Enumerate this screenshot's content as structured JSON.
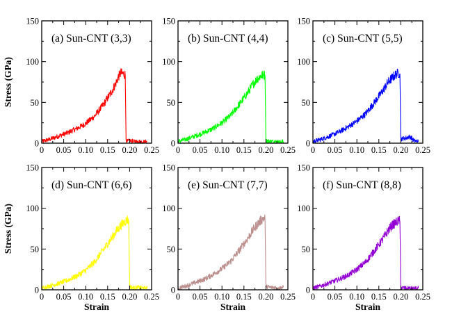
{
  "chart_data": [
    {
      "type": "line",
      "panel": "(a)",
      "title": "(a) Sun-CNT (3,3)",
      "color": "#ff0000",
      "xlabel": "",
      "ylabel": "Stress (GPa)",
      "xlim": [
        0,
        0.25
      ],
      "ylim": [
        0,
        150
      ],
      "xticks": [
        "0",
        "0.05",
        "0.10",
        "0.15",
        "0.20",
        "0.25"
      ],
      "yticks": [
        "0",
        "50",
        "100",
        "150"
      ],
      "series": [
        {
          "name": "Sun-CNT (3,3)",
          "x": [
            0,
            0.02,
            0.04,
            0.06,
            0.08,
            0.1,
            0.12,
            0.14,
            0.16,
            0.17,
            0.175,
            0.18,
            0.185,
            0.19,
            0.192,
            0.195,
            0.2,
            0.21,
            0.22,
            0.23,
            0.24
          ],
          "y": [
            2,
            5,
            9,
            13,
            18,
            24,
            33,
            47,
            64,
            75,
            82,
            86,
            85,
            84,
            4,
            2,
            3,
            2,
            2,
            1,
            2
          ]
        }
      ]
    },
    {
      "type": "line",
      "panel": "(b)",
      "title": "(b) Sun-CNT (4,4)",
      "color": "#00ff00",
      "xlabel": "",
      "ylabel": "",
      "xlim": [
        0,
        0.25
      ],
      "ylim": [
        0,
        150
      ],
      "xticks": [
        "0",
        "0.05",
        "0.10",
        "0.15",
        "0.20",
        "0.25"
      ],
      "yticks": [
        "0",
        "50",
        "100",
        "150"
      ],
      "series": [
        {
          "name": "Sun-CNT (4,4)",
          "x": [
            0,
            0.02,
            0.04,
            0.06,
            0.08,
            0.1,
            0.12,
            0.14,
            0.16,
            0.17,
            0.18,
            0.19,
            0.195,
            0.198,
            0.2,
            0.21,
            0.22,
            0.23,
            0.24
          ],
          "y": [
            2,
            5,
            9,
            13,
            18,
            25,
            34,
            48,
            63,
            72,
            79,
            83,
            84,
            83,
            3,
            2,
            2,
            1,
            2
          ]
        }
      ]
    },
    {
      "type": "line",
      "panel": "(c)",
      "title": "(c) Sun-CNT (5,5)",
      "color": "#0000ff",
      "xlabel": "",
      "ylabel": "",
      "xlim": [
        0,
        0.25
      ],
      "ylim": [
        0,
        150
      ],
      "xticks": [
        "0",
        "0.05",
        "0.10",
        "0.15",
        "0.20",
        "0.25"
      ],
      "yticks": [
        "0",
        "50",
        "100",
        "150"
      ],
      "series": [
        {
          "name": "Sun-CNT (5,5)",
          "x": [
            0,
            0.02,
            0.04,
            0.06,
            0.08,
            0.1,
            0.12,
            0.14,
            0.16,
            0.17,
            0.18,
            0.19,
            0.195,
            0.198,
            0.2,
            0.21,
            0.22,
            0.225,
            0.23,
            0.24
          ],
          "y": [
            2,
            5,
            9,
            14,
            20,
            27,
            36,
            50,
            65,
            74,
            80,
            85,
            86,
            85,
            5,
            6,
            8,
            6,
            3,
            2
          ]
        }
      ]
    },
    {
      "type": "line",
      "panel": "(d)",
      "title": "(d) Sun-CNT (6,6)",
      "color": "#ffff00",
      "xlabel": "Strain",
      "ylabel": "Stress (GPa)",
      "xlim": [
        0,
        0.25
      ],
      "ylim": [
        0,
        150
      ],
      "xticks": [
        "0",
        "0.05",
        "0.10",
        "0.15",
        "0.20",
        "0.25"
      ],
      "yticks": [
        "0",
        "50",
        "100",
        "150"
      ],
      "series": [
        {
          "name": "Sun-CNT (6,6)",
          "x": [
            0,
            0.02,
            0.04,
            0.06,
            0.08,
            0.1,
            0.12,
            0.14,
            0.16,
            0.17,
            0.18,
            0.19,
            0.195,
            0.198,
            0.2,
            0.21,
            0.22,
            0.23,
            0.24
          ],
          "y": [
            2,
            5,
            8,
            12,
            17,
            24,
            34,
            49,
            64,
            72,
            79,
            84,
            86,
            85,
            4,
            2,
            3,
            2,
            2
          ]
        }
      ]
    },
    {
      "type": "line",
      "panel": "(e)",
      "title": "(e) Sun-CNT (7,7)",
      "color": "#bc8f8f",
      "xlabel": "Strain",
      "ylabel": "",
      "xlim": [
        0,
        0.25
      ],
      "ylim": [
        0,
        150
      ],
      "xticks": [
        "0",
        "0.05",
        "0.10",
        "0.15",
        "0.20",
        "0.25"
      ],
      "yticks": [
        "0",
        "50",
        "100",
        "150"
      ],
      "series": [
        {
          "name": "Sun-CNT (7,7)",
          "x": [
            0,
            0.02,
            0.04,
            0.06,
            0.08,
            0.1,
            0.12,
            0.14,
            0.16,
            0.17,
            0.18,
            0.19,
            0.195,
            0.198,
            0.2,
            0.21,
            0.22,
            0.23,
            0.24
          ],
          "y": [
            2,
            5,
            9,
            13,
            19,
            26,
            35,
            49,
            64,
            73,
            80,
            86,
            88,
            87,
            4,
            3,
            3,
            2,
            3
          ]
        }
      ]
    },
    {
      "type": "line",
      "panel": "(f)",
      "title": "(f) Sun-CNT (8,8)",
      "color": "#9400d3",
      "xlabel": "Strain",
      "ylabel": "",
      "xlim": [
        0,
        0.25
      ],
      "ylim": [
        0,
        150
      ],
      "xticks": [
        "0",
        "0.05",
        "0.10",
        "0.15",
        "0.20",
        "0.25"
      ],
      "yticks": [
        "0",
        "50",
        "100",
        "150"
      ],
      "series": [
        {
          "name": "Sun-CNT (8,8)",
          "x": [
            0,
            0.02,
            0.04,
            0.06,
            0.08,
            0.1,
            0.12,
            0.14,
            0.16,
            0.17,
            0.18,
            0.19,
            0.195,
            0.198,
            0.2,
            0.21,
            0.22,
            0.23,
            0.24
          ],
          "y": [
            2,
            5,
            9,
            13,
            18,
            25,
            34,
            48,
            63,
            72,
            79,
            83,
            85,
            84,
            3,
            2,
            2,
            1,
            2
          ]
        }
      ]
    }
  ]
}
